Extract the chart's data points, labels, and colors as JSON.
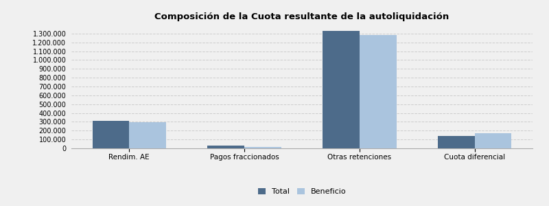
{
  "title": "Composición de la Cuota resultante de la autoliquidación",
  "categories": [
    "Rendim. AE",
    "Pagos fraccionados",
    "Otras retenciones",
    "Cuota diferencial"
  ],
  "total_values": [
    310000,
    28000,
    1330000,
    140000
  ],
  "beneficio_values": [
    295000,
    18000,
    1280000,
    168000
  ],
  "color_total": "#4d6b8a",
  "color_beneficio": "#aac4de",
  "bar_width": 0.32,
  "ylim": [
    0,
    1400000
  ],
  "yticks": [
    0,
    100000,
    200000,
    300000,
    400000,
    500000,
    600000,
    700000,
    800000,
    900000,
    1000000,
    1100000,
    1200000,
    1300000
  ],
  "background_color": "#f0f0f0",
  "legend_labels": [
    "Total",
    "Beneficio"
  ],
  "grid_color": "#cccccc",
  "title_fontsize": 9.5
}
